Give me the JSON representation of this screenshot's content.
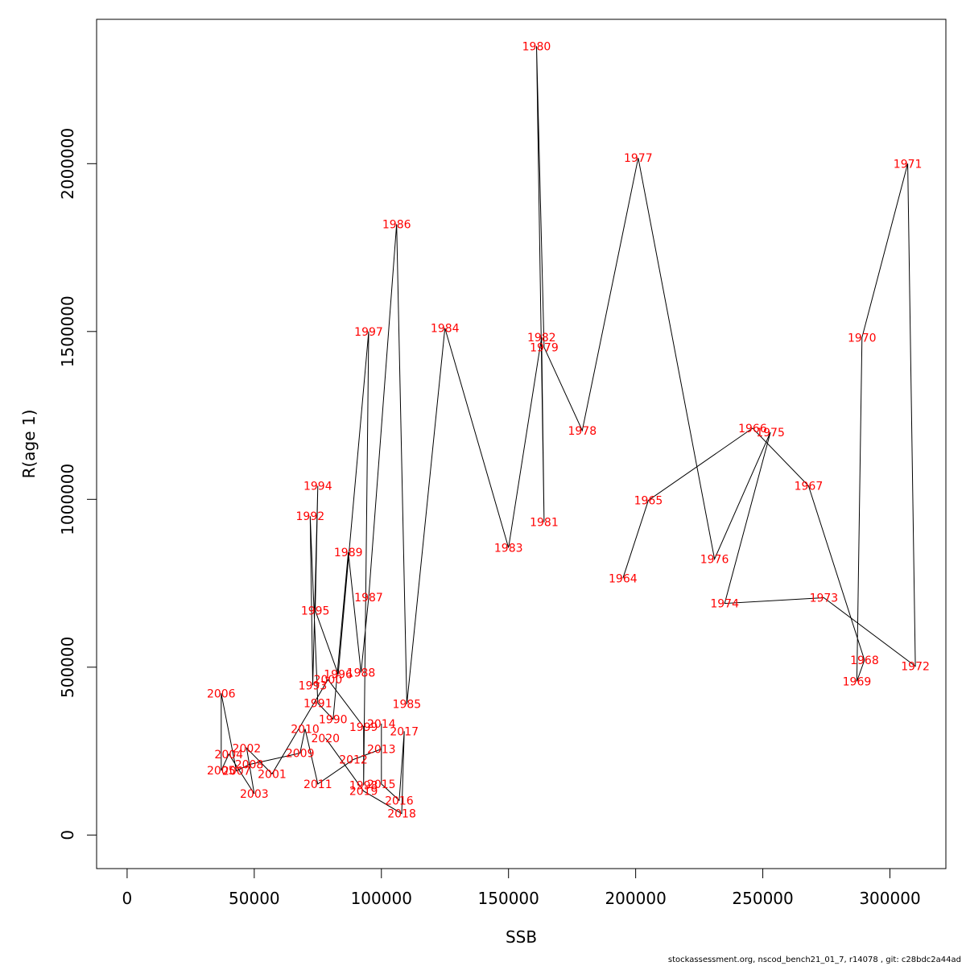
{
  "chart_data": {
    "type": "line",
    "title": "",
    "xlabel": "SSB",
    "ylabel": "R(age 1)",
    "xlim": [
      -12000,
      322000
    ],
    "ylim": [
      -100000,
      2430000
    ],
    "xticks": [
      0,
      50000,
      100000,
      150000,
      200000,
      250000,
      300000
    ],
    "yticks": [
      0,
      500000,
      1000000,
      1500000,
      2000000
    ],
    "grid": false,
    "line_color": "#000000",
    "label_color": "#ff0000",
    "points": [
      {
        "label": "1964",
        "x": 195000,
        "y": 765000
      },
      {
        "label": "1965",
        "x": 205000,
        "y": 997000
      },
      {
        "label": "1966",
        "x": 246000,
        "y": 1212000
      },
      {
        "label": "1967",
        "x": 268000,
        "y": 1040000
      },
      {
        "label": "1968",
        "x": 290000,
        "y": 521000
      },
      {
        "label": "1969",
        "x": 287000,
        "y": 458000
      },
      {
        "label": "1970",
        "x": 289000,
        "y": 1482000
      },
      {
        "label": "1971",
        "x": 307000,
        "y": 2000000
      },
      {
        "label": "1972",
        "x": 310000,
        "y": 503000
      },
      {
        "label": "1973",
        "x": 274000,
        "y": 707000
      },
      {
        "label": "1974",
        "x": 235000,
        "y": 690000
      },
      {
        "label": "1975",
        "x": 253000,
        "y": 1200000
      },
      {
        "label": "1976",
        "x": 231000,
        "y": 822000
      },
      {
        "label": "1977",
        "x": 201000,
        "y": 2017000
      },
      {
        "label": "1978",
        "x": 179000,
        "y": 1205000
      },
      {
        "label": "1979",
        "x": 164000,
        "y": 1453000
      },
      {
        "label": "1980",
        "x": 161000,
        "y": 2350000
      },
      {
        "label": "1981",
        "x": 164000,
        "y": 932000
      },
      {
        "label": "1982",
        "x": 163000,
        "y": 1483000
      },
      {
        "label": "1983",
        "x": 150000,
        "y": 856000
      },
      {
        "label": "1984",
        "x": 125000,
        "y": 1510000
      },
      {
        "label": "1985",
        "x": 110000,
        "y": 390000
      },
      {
        "label": "1986",
        "x": 106000,
        "y": 1820000
      },
      {
        "label": "1987",
        "x": 95000,
        "y": 708000
      },
      {
        "label": "1988",
        "x": 92000,
        "y": 484000
      },
      {
        "label": "1989",
        "x": 87000,
        "y": 842000
      },
      {
        "label": "1990",
        "x": 81000,
        "y": 345000
      },
      {
        "label": "1991",
        "x": 75000,
        "y": 393000
      },
      {
        "label": "1992",
        "x": 72000,
        "y": 950000
      },
      {
        "label": "1993",
        "x": 73000,
        "y": 446000
      },
      {
        "label": "1994",
        "x": 75000,
        "y": 1040000
      },
      {
        "label": "1995",
        "x": 74000,
        "y": 669000
      },
      {
        "label": "1996",
        "x": 83000,
        "y": 479000
      },
      {
        "label": "1997",
        "x": 95000,
        "y": 1500000
      },
      {
        "label": "1998",
        "x": 93000,
        "y": 148000
      },
      {
        "label": "1999",
        "x": 93000,
        "y": 322000
      },
      {
        "label": "2000",
        "x": 79000,
        "y": 463000
      },
      {
        "label": "2001",
        "x": 57000,
        "y": 182000
      },
      {
        "label": "2002",
        "x": 47000,
        "y": 259000
      },
      {
        "label": "2003",
        "x": 50000,
        "y": 123000
      },
      {
        "label": "2004",
        "x": 40000,
        "y": 241000
      },
      {
        "label": "2005",
        "x": 37000,
        "y": 192000
      },
      {
        "label": "2006",
        "x": 37000,
        "y": 422000
      },
      {
        "label": "2007",
        "x": 43000,
        "y": 191000
      },
      {
        "label": "2008",
        "x": 48000,
        "y": 210000
      },
      {
        "label": "2009",
        "x": 68000,
        "y": 244000
      },
      {
        "label": "2010",
        "x": 70000,
        "y": 316000
      },
      {
        "label": "2011",
        "x": 75000,
        "y": 152000
      },
      {
        "label": "2012",
        "x": 89000,
        "y": 225000
      },
      {
        "label": "2013",
        "x": 100000,
        "y": 256000
      },
      {
        "label": "2014",
        "x": 100000,
        "y": 332000
      },
      {
        "label": "2015",
        "x": 100000,
        "y": 152000
      },
      {
        "label": "2016",
        "x": 107000,
        "y": 103000
      },
      {
        "label": "2017",
        "x": 109000,
        "y": 309000
      },
      {
        "label": "2018",
        "x": 108000,
        "y": 64000
      },
      {
        "label": "2019",
        "x": 93000,
        "y": 131000
      },
      {
        "label": "2020",
        "x": 78000,
        "y": 289000
      }
    ]
  },
  "footer": {
    "text": "stockassessment.org, nscod_bench21_01_7, r14078 , git: c28bdc2a44ad"
  }
}
